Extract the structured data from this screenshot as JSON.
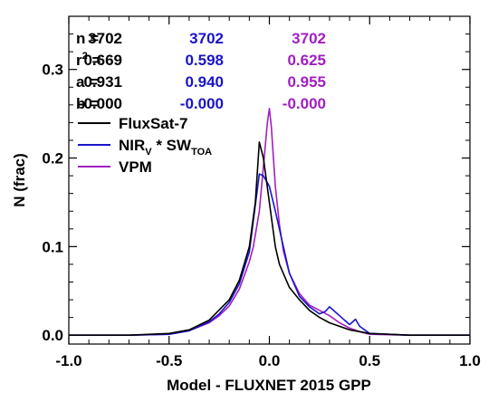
{
  "chart_data": {
    "type": "line",
    "xlabel": "Model - FLUXNET 2015 GPP",
    "ylabel": "N (frac)",
    "xlim": [
      -1.0,
      1.0
    ],
    "ylim": [
      -0.01,
      0.36
    ],
    "x_ticks": [
      "-1.0",
      "-0.5",
      "0.0",
      "0.5",
      "1.0"
    ],
    "y_ticks": [
      "0.0",
      "0.1",
      "0.2",
      "0.3"
    ],
    "x_tick_values": [
      -1.0,
      -0.5,
      0.0,
      0.5,
      1.0
    ],
    "y_tick_values": [
      0.0,
      0.1,
      0.2,
      0.3
    ],
    "stats": {
      "labels": [
        "n =",
        "r",
        "a =",
        "b ="
      ],
      "r2_sup": "2",
      "r2_suffix": " =",
      "columns": [
        {
          "color": "#000000",
          "values": [
            "3702",
            "0.669",
            "0.931",
            "-0.000"
          ]
        },
        {
          "color": "#1a14c8",
          "values": [
            "3702",
            "0.598",
            "0.940",
            "-0.000"
          ]
        },
        {
          "color": "#a020c0",
          "values": [
            "3702",
            "0.625",
            "0.955",
            "-0.000"
          ]
        }
      ]
    },
    "legend": [
      {
        "name": "FluxSat-7",
        "color": "#000000"
      },
      {
        "name": "NIR",
        "sub1": "V",
        "mid": " * SW",
        "sub2": "TOA",
        "color": "#1a14c8"
      },
      {
        "name": "VPM",
        "color": "#a020c0"
      }
    ],
    "legend_position": "upper-left",
    "series": [
      {
        "color": "#a020c0",
        "x": [
          -1.0,
          -0.7,
          -0.5,
          -0.4,
          -0.3,
          -0.25,
          -0.2,
          -0.15,
          -0.1,
          -0.08,
          -0.05,
          -0.03,
          -0.01,
          0.0,
          0.01,
          0.03,
          0.05,
          0.07,
          0.1,
          0.15,
          0.2,
          0.25,
          0.3,
          0.35,
          0.4,
          0.45,
          0.5,
          0.7,
          1.0
        ],
        "values": [
          0.0,
          0.0,
          0.001,
          0.005,
          0.014,
          0.022,
          0.033,
          0.052,
          0.083,
          0.1,
          0.14,
          0.19,
          0.24,
          0.256,
          0.235,
          0.168,
          0.125,
          0.095,
          0.07,
          0.047,
          0.034,
          0.028,
          0.022,
          0.014,
          0.008,
          0.004,
          0.001,
          0.0,
          0.0
        ]
      },
      {
        "color": "#1a14c8",
        "x": [
          -1.0,
          -0.7,
          -0.5,
          -0.4,
          -0.3,
          -0.25,
          -0.2,
          -0.15,
          -0.1,
          -0.05,
          -0.03,
          0.0,
          0.03,
          0.07,
          0.1,
          0.15,
          0.2,
          0.25,
          0.28,
          0.3,
          0.35,
          0.4,
          0.43,
          0.45,
          0.5,
          0.7,
          1.0
        ],
        "values": [
          0.0,
          0.0,
          0.001,
          0.005,
          0.015,
          0.024,
          0.037,
          0.058,
          0.094,
          0.182,
          0.18,
          0.168,
          0.14,
          0.1,
          0.07,
          0.044,
          0.032,
          0.024,
          0.027,
          0.032,
          0.022,
          0.012,
          0.018,
          0.01,
          0.002,
          0.0,
          0.0
        ]
      },
      {
        "color": "#000000",
        "x": [
          -1.0,
          -0.7,
          -0.5,
          -0.4,
          -0.3,
          -0.2,
          -0.15,
          -0.1,
          -0.07,
          -0.05,
          -0.03,
          0.0,
          0.03,
          0.05,
          0.1,
          0.15,
          0.2,
          0.25,
          0.3,
          0.4,
          0.5,
          0.7,
          1.0
        ],
        "values": [
          0.0,
          0.0,
          0.002,
          0.006,
          0.017,
          0.04,
          0.062,
          0.1,
          0.15,
          0.218,
          0.2,
          0.15,
          0.1,
          0.08,
          0.054,
          0.04,
          0.028,
          0.02,
          0.014,
          0.006,
          0.002,
          0.0,
          0.0
        ]
      }
    ]
  }
}
